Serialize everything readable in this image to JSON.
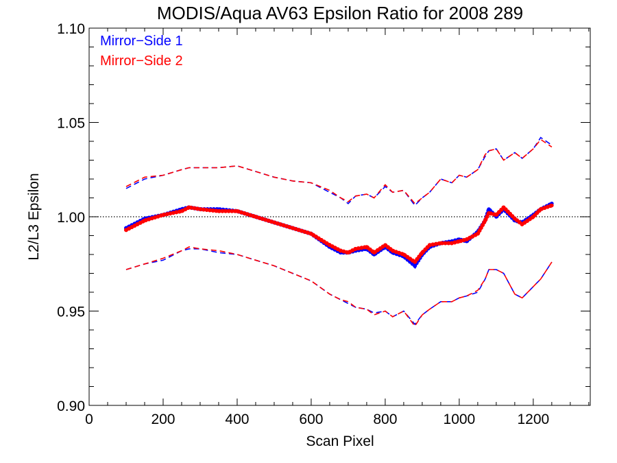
{
  "chart_data": {
    "type": "line",
    "title": "MODIS/Aqua AV63 Epsilon Ratio for 2008 289",
    "xlabel": "Scan Pixel",
    "ylabel": "L2/L3 Epsilon",
    "xlim": [
      0,
      1354
    ],
    "ylim": [
      0.9,
      1.1
    ],
    "x_ticks": [
      0,
      200,
      400,
      600,
      800,
      1000,
      1200
    ],
    "x_tick_labels": [
      "0",
      "200",
      "400",
      "600",
      "800",
      "1000",
      "1200"
    ],
    "y_ticks": [
      0.9,
      0.95,
      1.0,
      1.05,
      1.1
    ],
    "y_tick_labels": [
      "0.90",
      "0.95",
      "1.00",
      "1.05",
      "1.10"
    ],
    "reference_line": 1.0,
    "grid": false,
    "legend_position": "top-left",
    "colors": {
      "mirror_side_1": "#0000ff",
      "mirror_side_2": "#ff0000",
      "reference": "#000000"
    },
    "x": [
      100,
      150,
      200,
      250,
      270,
      300,
      350,
      400,
      450,
      500,
      550,
      600,
      650,
      680,
      700,
      720,
      750,
      770,
      800,
      820,
      850,
      880,
      900,
      920,
      950,
      980,
      1000,
      1020,
      1050,
      1070,
      1080,
      1100,
      1120,
      1150,
      1170,
      1200,
      1220,
      1250
    ],
    "series": [
      {
        "name": "Mirror-Side 1",
        "style": "dotted",
        "mean": [
          0.994,
          0.999,
          1.001,
          1.004,
          1.005,
          1.004,
          1.004,
          1.003,
          1.0,
          0.997,
          0.994,
          0.991,
          0.984,
          0.981,
          0.981,
          0.982,
          0.983,
          0.98,
          0.984,
          0.981,
          0.979,
          0.974,
          0.98,
          0.984,
          0.986,
          0.987,
          0.988,
          0.987,
          0.992,
          0.998,
          1.004,
          1.0,
          1.004,
          0.998,
          0.997,
          1.001,
          1.004,
          1.007
        ],
        "upper": [
          1.015,
          1.02,
          1.022,
          1.025,
          1.026,
          1.026,
          1.026,
          1.027,
          1.024,
          1.021,
          1.019,
          1.018,
          1.013,
          1.01,
          1.007,
          1.011,
          1.012,
          1.01,
          1.016,
          1.013,
          1.014,
          1.006,
          1.01,
          1.013,
          1.02,
          1.018,
          1.022,
          1.021,
          1.025,
          1.032,
          1.035,
          1.036,
          1.03,
          1.034,
          1.031,
          1.036,
          1.042,
          1.038
        ],
        "lower": [
          0.972,
          0.975,
          0.977,
          0.982,
          0.983,
          0.983,
          0.981,
          0.98,
          0.977,
          0.974,
          0.97,
          0.966,
          0.959,
          0.956,
          0.954,
          0.952,
          0.951,
          0.949,
          0.95,
          0.947,
          0.95,
          0.943,
          0.948,
          0.951,
          0.955,
          0.955,
          0.957,
          0.958,
          0.96,
          0.967,
          0.972,
          0.972,
          0.97,
          0.959,
          0.957,
          0.963,
          0.967,
          0.976
        ]
      },
      {
        "name": "Mirror-Side 2",
        "style": "dotted",
        "mean": [
          0.993,
          0.998,
          1.001,
          1.003,
          1.005,
          1.004,
          1.003,
          1.003,
          1.0,
          0.997,
          0.994,
          0.991,
          0.985,
          0.982,
          0.981,
          0.983,
          0.984,
          0.981,
          0.985,
          0.982,
          0.98,
          0.976,
          0.981,
          0.985,
          0.986,
          0.986,
          0.987,
          0.988,
          0.991,
          0.998,
          1.002,
          1.001,
          1.005,
          0.999,
          0.996,
          1.0,
          1.004,
          1.006
        ],
        "upper": [
          1.016,
          1.021,
          1.022,
          1.025,
          1.026,
          1.026,
          1.026,
          1.027,
          1.024,
          1.021,
          1.019,
          1.018,
          1.014,
          1.01,
          1.008,
          1.011,
          1.012,
          1.01,
          1.017,
          1.013,
          1.014,
          1.007,
          1.01,
          1.013,
          1.02,
          1.018,
          1.022,
          1.021,
          1.025,
          1.033,
          1.035,
          1.036,
          1.03,
          1.034,
          1.031,
          1.036,
          1.041,
          1.037
        ],
        "lower": [
          0.972,
          0.975,
          0.978,
          0.982,
          0.984,
          0.983,
          0.982,
          0.98,
          0.977,
          0.974,
          0.97,
          0.966,
          0.959,
          0.956,
          0.955,
          0.952,
          0.951,
          0.948,
          0.95,
          0.947,
          0.95,
          0.942,
          0.948,
          0.951,
          0.955,
          0.955,
          0.957,
          0.958,
          0.961,
          0.967,
          0.972,
          0.972,
          0.97,
          0.959,
          0.957,
          0.963,
          0.967,
          0.976
        ]
      }
    ]
  }
}
